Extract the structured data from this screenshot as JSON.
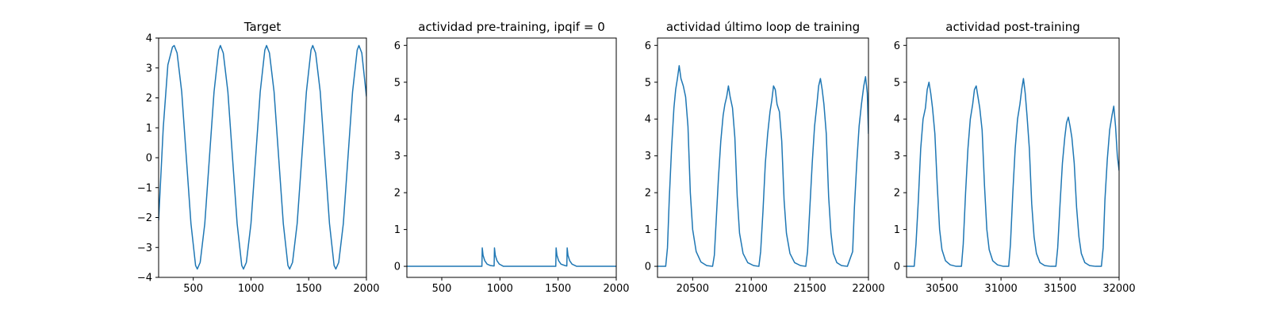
{
  "figure": {
    "color": "#1f77b4"
  },
  "chart_data": [
    {
      "type": "line",
      "title": "Target",
      "xlabel": "",
      "ylabel": "",
      "xlim": [
        200,
        2000
      ],
      "ylim": [
        -4,
        4
      ],
      "xticks": [
        500,
        1000,
        1500,
        2000
      ],
      "xtick_labels": [
        "500",
        "1000",
        "1500",
        "2000"
      ],
      "yticks": [
        -4,
        -3,
        -2,
        -1,
        0,
        1,
        2,
        3,
        4
      ],
      "ytick_labels": [
        "−4",
        "−3",
        "−2",
        "−1",
        "0",
        "1",
        "2",
        "3",
        "4"
      ],
      "series": [
        {
          "name": "target",
          "x": [
            200,
            240,
            280,
            320,
            335,
            360,
            400,
            440,
            480,
            520,
            535,
            560,
            600,
            640,
            680,
            720,
            735,
            760,
            800,
            840,
            880,
            920,
            935,
            960,
            1000,
            1040,
            1080,
            1120,
            1135,
            1160,
            1200,
            1240,
            1280,
            1320,
            1335,
            1360,
            1400,
            1440,
            1480,
            1520,
            1535,
            1560,
            1600,
            1640,
            1680,
            1720,
            1735,
            1760,
            1800,
            1840,
            1880,
            1920,
            1935,
            1960,
            2000
          ],
          "y": [
            -2.1,
            1.0,
            3.1,
            3.7,
            3.75,
            3.5,
            2.2,
            0.0,
            -2.2,
            -3.6,
            -3.72,
            -3.5,
            -2.2,
            0.0,
            2.2,
            3.6,
            3.75,
            3.5,
            2.2,
            0.0,
            -2.2,
            -3.6,
            -3.72,
            -3.5,
            -2.2,
            0.0,
            2.2,
            3.6,
            3.75,
            3.5,
            2.2,
            0.0,
            -2.2,
            -3.6,
            -3.72,
            -3.5,
            -2.2,
            0.0,
            2.2,
            3.6,
            3.75,
            3.5,
            2.2,
            0.0,
            -2.2,
            -3.6,
            -3.72,
            -3.5,
            -2.2,
            0.0,
            2.2,
            3.6,
            3.75,
            3.5,
            2.05
          ]
        }
      ]
    },
    {
      "type": "line",
      "title": "actividad pre-training, ipqif = 0",
      "xlabel": "",
      "ylabel": "",
      "xlim": [
        200,
        2000
      ],
      "ylim": [
        -0.3,
        6.2
      ],
      "xticks": [
        500,
        1000,
        1500,
        2000
      ],
      "xtick_labels": [
        "500",
        "1000",
        "1500",
        "2000"
      ],
      "yticks": [
        0,
        1,
        2,
        3,
        4,
        5,
        6
      ],
      "ytick_labels": [
        "0",
        "1",
        "2",
        "3",
        "4",
        "5",
        "6"
      ],
      "series": [
        {
          "name": "pre-training",
          "x": [
            200,
            845,
            848,
            855,
            870,
            890,
            920,
            950,
            953,
            960,
            975,
            995,
            1030,
            1480,
            1483,
            1490,
            1505,
            1525,
            1560,
            1575,
            1578,
            1585,
            1600,
            1620,
            1660,
            2000
          ],
          "y": [
            0,
            0,
            0.5,
            0.3,
            0.15,
            0.06,
            0.02,
            0.01,
            0.5,
            0.3,
            0.15,
            0.06,
            0,
            0,
            0.5,
            0.3,
            0.15,
            0.06,
            0.02,
            0.01,
            0.5,
            0.3,
            0.15,
            0.06,
            0,
            0
          ]
        }
      ]
    },
    {
      "type": "line",
      "title": "actividad último loop de training",
      "xlabel": "",
      "ylabel": "",
      "xlim": [
        20200,
        22000
      ],
      "ylim": [
        -0.3,
        6.2
      ],
      "xticks": [
        20500,
        21000,
        21500,
        22000
      ],
      "xtick_labels": [
        "20500",
        "21000",
        "21500",
        "22000"
      ],
      "yticks": [
        0,
        1,
        2,
        3,
        4,
        5,
        6
      ],
      "ytick_labels": [
        "0",
        "1",
        "2",
        "3",
        "4",
        "5",
        "6"
      ],
      "series": [
        {
          "name": "training",
          "x": [
            20200,
            20270,
            20285,
            20300,
            20320,
            20340,
            20355,
            20370,
            20385,
            20400,
            20420,
            20440,
            20460,
            20480,
            20500,
            20530,
            20570,
            20620,
            20670,
            20685,
            20700,
            20720,
            20740,
            20760,
            20775,
            20790,
            20805,
            20820,
            20840,
            20860,
            20880,
            20900,
            20930,
            20970,
            21020,
            21065,
            21080,
            21100,
            21120,
            21140,
            21160,
            21175,
            21190,
            21205,
            21220,
            21240,
            21260,
            21280,
            21300,
            21330,
            21370,
            21420,
            21465,
            21480,
            21500,
            21520,
            21540,
            21560,
            21575,
            21590,
            21605,
            21620,
            21640,
            21660,
            21680,
            21700,
            21730,
            21770,
            21820,
            21865,
            21880,
            21900,
            21920,
            21940,
            21960,
            21975,
            21990,
            22000
          ],
          "y": [
            0,
            0,
            0.5,
            1.8,
            3.2,
            4.3,
            4.8,
            5.1,
            5.45,
            5.1,
            4.9,
            4.6,
            3.8,
            2.0,
            1.0,
            0.4,
            0.12,
            0.02,
            0,
            0.3,
            1.2,
            2.4,
            3.4,
            4.1,
            4.4,
            4.6,
            4.9,
            4.6,
            4.3,
            3.5,
            1.9,
            0.9,
            0.35,
            0.1,
            0.02,
            0,
            0.4,
            1.5,
            2.8,
            3.6,
            4.2,
            4.5,
            4.9,
            4.8,
            4.4,
            4.2,
            3.4,
            1.8,
            0.9,
            0.35,
            0.1,
            0.02,
            0,
            0.4,
            1.6,
            2.8,
            3.8,
            4.4,
            4.9,
            5.1,
            4.8,
            4.4,
            3.6,
            1.9,
            0.9,
            0.35,
            0.1,
            0.02,
            0,
            0.4,
            1.6,
            2.8,
            3.8,
            4.4,
            4.9,
            5.15,
            4.7,
            3.6
          ]
        }
      ]
    },
    {
      "type": "line",
      "title": "actividad post-training",
      "xlabel": "",
      "ylabel": "",
      "xlim": [
        30200,
        32000
      ],
      "ylim": [
        -0.3,
        6.2
      ],
      "xticks": [
        30500,
        31000,
        31500,
        32000
      ],
      "xtick_labels": [
        "30500",
        "31000",
        "31500",
        "32000"
      ],
      "yticks": [
        0,
        1,
        2,
        3,
        4,
        5,
        6
      ],
      "ytick_labels": [
        "0",
        "1",
        "2",
        "3",
        "4",
        "5",
        "6"
      ],
      "series": [
        {
          "name": "post-training",
          "x": [
            30200,
            30265,
            30280,
            30300,
            30320,
            30340,
            30360,
            30375,
            30390,
            30405,
            30420,
            30440,
            30460,
            30480,
            30500,
            30530,
            30570,
            30620,
            30665,
            30680,
            30700,
            30720,
            30740,
            30760,
            30775,
            30790,
            30805,
            30820,
            30840,
            30860,
            30880,
            30900,
            30930,
            30970,
            31020,
            31065,
            31080,
            31100,
            31120,
            31140,
            31160,
            31175,
            31190,
            31205,
            31220,
            31240,
            31260,
            31280,
            31300,
            31330,
            31370,
            31420,
            31465,
            31480,
            31500,
            31520,
            31540,
            31555,
            31570,
            31585,
            31600,
            31620,
            31640,
            31660,
            31680,
            31710,
            31750,
            31800,
            31850,
            31865,
            31880,
            31900,
            31920,
            31940,
            31955,
            31970,
            31985,
            32000
          ],
          "y": [
            0,
            0,
            0.6,
            1.8,
            3.2,
            4.0,
            4.3,
            4.8,
            5.0,
            4.7,
            4.3,
            3.6,
            2.2,
            1.0,
            0.45,
            0.15,
            0.04,
            0,
            0,
            0.6,
            2.0,
            3.2,
            4.0,
            4.4,
            4.8,
            4.9,
            4.6,
            4.3,
            3.7,
            2.2,
            1.0,
            0.45,
            0.15,
            0.04,
            0,
            0,
            0.6,
            2.0,
            3.2,
            4.0,
            4.4,
            4.8,
            5.1,
            4.7,
            4.1,
            3.2,
            1.7,
            0.8,
            0.35,
            0.1,
            0.02,
            0,
            0,
            0.5,
            1.7,
            2.8,
            3.5,
            3.9,
            4.05,
            3.8,
            3.5,
            2.8,
            1.6,
            0.8,
            0.35,
            0.1,
            0.02,
            0,
            0,
            0.5,
            1.8,
            2.9,
            3.7,
            4.1,
            4.35,
            3.8,
            3.0,
            2.6
          ]
        }
      ]
    }
  ]
}
